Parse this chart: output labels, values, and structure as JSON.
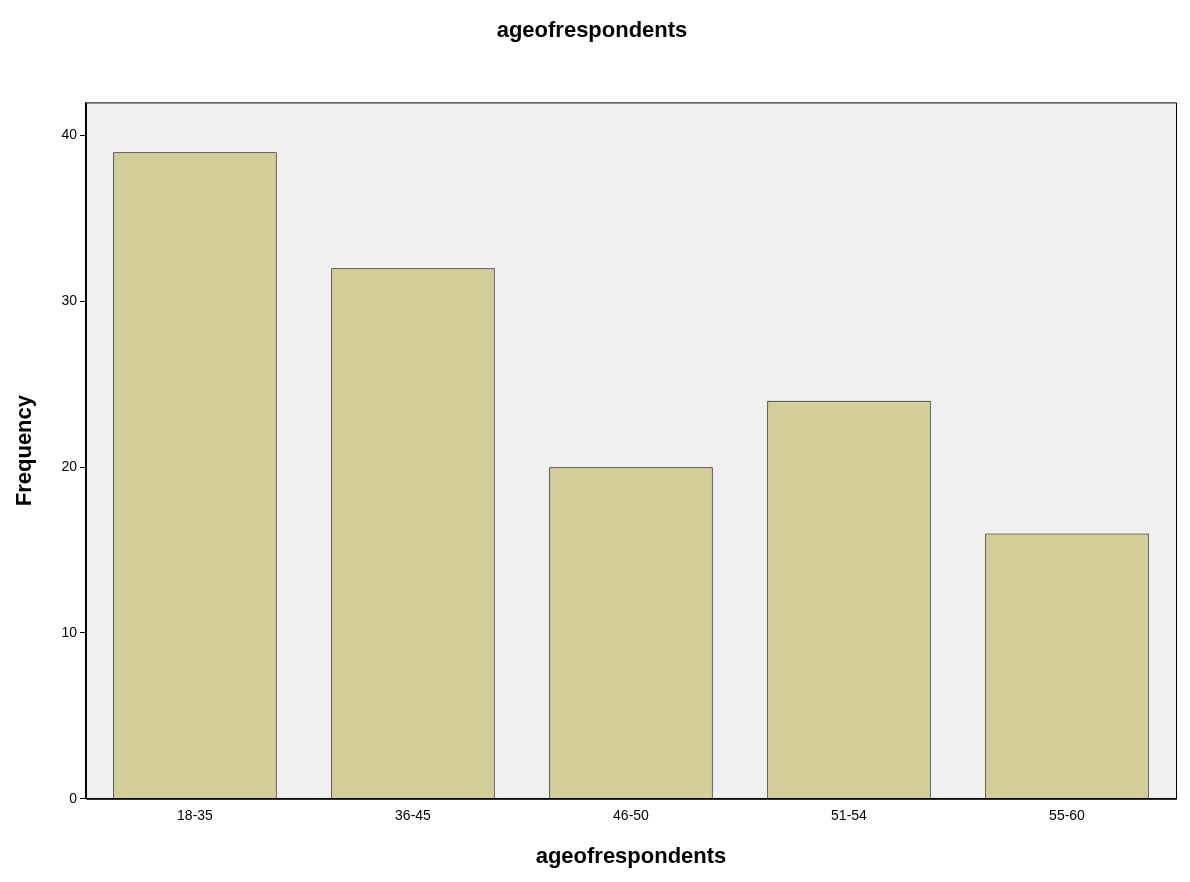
{
  "chart_data": {
    "type": "bar",
    "title": "ageofrespondents",
    "xlabel": "ageofrespondents",
    "ylabel": "Frequency",
    "categories": [
      "18-35",
      "36-45",
      "46-50",
      "51-54",
      "55-60"
    ],
    "values": [
      39,
      32,
      20,
      24,
      16
    ],
    "color": "#d3cd97",
    "ylim": [
      0,
      42
    ],
    "yticks": [
      0,
      10,
      20,
      30,
      40
    ],
    "grid": false,
    "legend": false
  }
}
